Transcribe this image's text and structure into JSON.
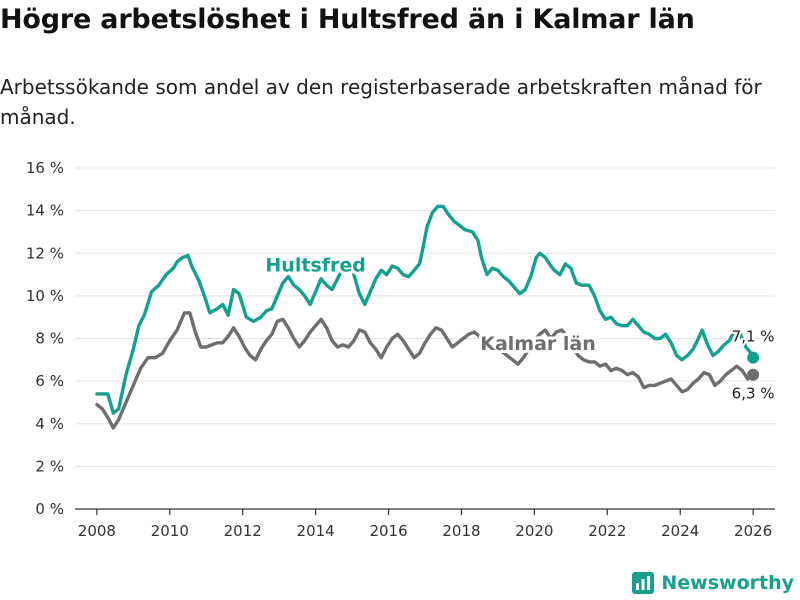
{
  "title": "Högre arbetslöshet i Hultsfred än i Kalmar län",
  "subtitle": "Arbetssökande som andel av den registerbaserade arbetskraften månad för månad.",
  "brand": "Newsworthy",
  "colors": {
    "hultsfred": "#13a08f",
    "kalmar": "#6e6e6e",
    "brand": "#17a08f"
  },
  "chart_data": {
    "type": "line",
    "title": "Högre arbetslöshet i Hultsfred än i Kalmar län",
    "xlabel": "",
    "ylabel": "",
    "xlim": [
      2007.4,
      2026.6
    ],
    "ylim": [
      0,
      16
    ],
    "xticks": [
      2008,
      2010,
      2012,
      2014,
      2016,
      2018,
      2020,
      2022,
      2024,
      2026
    ],
    "xtick_labels": [
      "2008",
      "2010",
      "2012",
      "2014",
      "2016",
      "2018",
      "2020",
      "2022",
      "2024",
      "2026"
    ],
    "yticks": [
      0,
      2,
      4,
      6,
      8,
      10,
      12,
      14,
      16
    ],
    "ytick_labels": [
      "0 %",
      "2 %",
      "4 %",
      "6 %",
      "8 %",
      "10 %",
      "12 %",
      "14 %",
      "16 %"
    ],
    "series": [
      {
        "name": "Hultsfred",
        "label": "Hultsfred",
        "end_label": "7,1 %",
        "end_value": 7.1,
        "points": [
          [
            2008.0,
            5.4
          ],
          [
            2008.3,
            5.4
          ],
          [
            2008.45,
            4.5
          ],
          [
            2008.6,
            4.7
          ],
          [
            2008.8,
            6.3
          ],
          [
            2009.0,
            7.5
          ],
          [
            2009.15,
            8.6
          ],
          [
            2009.3,
            9.1
          ],
          [
            2009.5,
            10.2
          ],
          [
            2009.7,
            10.5
          ],
          [
            2009.9,
            11.0
          ],
          [
            2010.1,
            11.3
          ],
          [
            2010.2,
            11.6
          ],
          [
            2010.35,
            11.8
          ],
          [
            2010.5,
            11.9
          ],
          [
            2010.6,
            11.4
          ],
          [
            2010.8,
            10.7
          ],
          [
            2010.95,
            10.0
          ],
          [
            2011.1,
            9.2
          ],
          [
            2011.3,
            9.4
          ],
          [
            2011.45,
            9.6
          ],
          [
            2011.6,
            9.1
          ],
          [
            2011.75,
            10.3
          ],
          [
            2011.9,
            10.1
          ],
          [
            2012.1,
            9.0
          ],
          [
            2012.3,
            8.8
          ],
          [
            2012.5,
            9.0
          ],
          [
            2012.65,
            9.3
          ],
          [
            2012.8,
            9.4
          ],
          [
            2012.95,
            10.0
          ],
          [
            2013.1,
            10.6
          ],
          [
            2013.25,
            10.9
          ],
          [
            2013.4,
            10.5
          ],
          [
            2013.55,
            10.3
          ],
          [
            2013.7,
            10.0
          ],
          [
            2013.85,
            9.6
          ],
          [
            2014.0,
            10.2
          ],
          [
            2014.15,
            10.8
          ],
          [
            2014.3,
            10.5
          ],
          [
            2014.45,
            10.3
          ],
          [
            2014.6,
            10.8
          ],
          [
            2014.75,
            11.3
          ],
          [
            2014.9,
            11.6
          ],
          [
            2015.05,
            11.0
          ],
          [
            2015.2,
            10.1
          ],
          [
            2015.35,
            9.6
          ],
          [
            2015.5,
            10.2
          ],
          [
            2015.65,
            10.8
          ],
          [
            2015.8,
            11.2
          ],
          [
            2015.95,
            11.0
          ],
          [
            2016.1,
            11.4
          ],
          [
            2016.25,
            11.3
          ],
          [
            2016.4,
            11.0
          ],
          [
            2016.55,
            10.9
          ],
          [
            2016.7,
            11.2
          ],
          [
            2016.85,
            11.5
          ],
          [
            2016.95,
            12.3
          ],
          [
            2017.05,
            13.2
          ],
          [
            2017.2,
            13.9
          ],
          [
            2017.35,
            14.2
          ],
          [
            2017.5,
            14.2
          ],
          [
            2017.65,
            13.8
          ],
          [
            2017.8,
            13.5
          ],
          [
            2017.95,
            13.3
          ],
          [
            2018.1,
            13.1
          ],
          [
            2018.3,
            13.0
          ],
          [
            2018.45,
            12.6
          ],
          [
            2018.55,
            11.8
          ],
          [
            2018.7,
            11.0
          ],
          [
            2018.85,
            11.3
          ],
          [
            2019.0,
            11.2
          ],
          [
            2019.15,
            10.9
          ],
          [
            2019.3,
            10.7
          ],
          [
            2019.45,
            10.4
          ],
          [
            2019.6,
            10.1
          ],
          [
            2019.75,
            10.3
          ],
          [
            2019.9,
            10.9
          ],
          [
            2020.05,
            11.8
          ],
          [
            2020.15,
            12.0
          ],
          [
            2020.3,
            11.8
          ],
          [
            2020.45,
            11.4
          ],
          [
            2020.55,
            11.2
          ],
          [
            2020.7,
            11.0
          ],
          [
            2020.85,
            11.5
          ],
          [
            2021.0,
            11.3
          ],
          [
            2021.15,
            10.6
          ],
          [
            2021.3,
            10.5
          ],
          [
            2021.5,
            10.5
          ],
          [
            2021.65,
            10.0
          ],
          [
            2021.8,
            9.3
          ],
          [
            2021.95,
            8.9
          ],
          [
            2022.1,
            9.0
          ],
          [
            2022.25,
            8.7
          ],
          [
            2022.4,
            8.6
          ],
          [
            2022.55,
            8.6
          ],
          [
            2022.7,
            8.9
          ],
          [
            2022.85,
            8.6
          ],
          [
            2023.0,
            8.3
          ],
          [
            2023.15,
            8.2
          ],
          [
            2023.3,
            8.0
          ],
          [
            2023.45,
            8.0
          ],
          [
            2023.6,
            8.2
          ],
          [
            2023.75,
            7.8
          ],
          [
            2023.9,
            7.2
          ],
          [
            2024.05,
            7.0
          ],
          [
            2024.2,
            7.2
          ],
          [
            2024.35,
            7.5
          ],
          [
            2024.5,
            8.0
          ],
          [
            2024.6,
            8.4
          ],
          [
            2024.75,
            7.7
          ],
          [
            2024.9,
            7.2
          ],
          [
            2025.05,
            7.4
          ],
          [
            2025.2,
            7.7
          ],
          [
            2025.35,
            7.9
          ],
          [
            2025.5,
            8.4
          ],
          [
            2025.65,
            8.2
          ],
          [
            2025.8,
            7.6
          ],
          [
            2025.95,
            7.3
          ],
          [
            2026.0,
            7.1
          ]
        ]
      },
      {
        "name": "Kalmar län",
        "label": "Kalmar län",
        "end_label": "6,3 %",
        "end_value": 6.3,
        "points": [
          [
            2008.0,
            4.9
          ],
          [
            2008.15,
            4.7
          ],
          [
            2008.3,
            4.3
          ],
          [
            2008.45,
            3.8
          ],
          [
            2008.6,
            4.2
          ],
          [
            2008.8,
            5.0
          ],
          [
            2009.0,
            5.8
          ],
          [
            2009.2,
            6.6
          ],
          [
            2009.4,
            7.1
          ],
          [
            2009.6,
            7.1
          ],
          [
            2009.8,
            7.3
          ],
          [
            2010.0,
            7.9
          ],
          [
            2010.2,
            8.4
          ],
          [
            2010.4,
            9.2
          ],
          [
            2010.55,
            9.2
          ],
          [
            2010.7,
            8.3
          ],
          [
            2010.85,
            7.6
          ],
          [
            2011.0,
            7.6
          ],
          [
            2011.15,
            7.7
          ],
          [
            2011.3,
            7.8
          ],
          [
            2011.45,
            7.8
          ],
          [
            2011.6,
            8.1
          ],
          [
            2011.75,
            8.5
          ],
          [
            2011.9,
            8.1
          ],
          [
            2012.05,
            7.6
          ],
          [
            2012.2,
            7.2
          ],
          [
            2012.35,
            7.0
          ],
          [
            2012.5,
            7.5
          ],
          [
            2012.65,
            7.9
          ],
          [
            2012.8,
            8.2
          ],
          [
            2012.95,
            8.8
          ],
          [
            2013.1,
            8.9
          ],
          [
            2013.25,
            8.5
          ],
          [
            2013.4,
            8.0
          ],
          [
            2013.55,
            7.6
          ],
          [
            2013.7,
            7.9
          ],
          [
            2013.85,
            8.3
          ],
          [
            2014.0,
            8.6
          ],
          [
            2014.15,
            8.9
          ],
          [
            2014.3,
            8.5
          ],
          [
            2014.45,
            7.9
          ],
          [
            2014.6,
            7.6
          ],
          [
            2014.75,
            7.7
          ],
          [
            2014.9,
            7.6
          ],
          [
            2015.05,
            7.9
          ],
          [
            2015.2,
            8.4
          ],
          [
            2015.35,
            8.3
          ],
          [
            2015.5,
            7.8
          ],
          [
            2015.65,
            7.5
          ],
          [
            2015.8,
            7.1
          ],
          [
            2015.95,
            7.6
          ],
          [
            2016.1,
            8.0
          ],
          [
            2016.25,
            8.2
          ],
          [
            2016.4,
            7.9
          ],
          [
            2016.55,
            7.5
          ],
          [
            2016.7,
            7.1
          ],
          [
            2016.85,
            7.3
          ],
          [
            2017.0,
            7.8
          ],
          [
            2017.15,
            8.2
          ],
          [
            2017.3,
            8.5
          ],
          [
            2017.45,
            8.4
          ],
          [
            2017.6,
            8.0
          ],
          [
            2017.75,
            7.6
          ],
          [
            2017.9,
            7.8
          ],
          [
            2018.05,
            8.0
          ],
          [
            2018.2,
            8.2
          ],
          [
            2018.35,
            8.3
          ],
          [
            2018.5,
            8.1
          ],
          [
            2018.65,
            7.7
          ],
          [
            2018.8,
            7.5
          ],
          [
            2018.95,
            7.6
          ],
          [
            2019.1,
            7.4
          ],
          [
            2019.25,
            7.2
          ],
          [
            2019.4,
            7.0
          ],
          [
            2019.55,
            6.8
          ],
          [
            2019.7,
            7.1
          ],
          [
            2019.85,
            7.5
          ],
          [
            2020.0,
            7.9
          ],
          [
            2020.15,
            8.2
          ],
          [
            2020.3,
            8.4
          ],
          [
            2020.45,
            8.0
          ],
          [
            2020.6,
            8.3
          ],
          [
            2020.75,
            8.4
          ],
          [
            2020.9,
            8.1
          ],
          [
            2021.05,
            7.6
          ],
          [
            2021.2,
            7.2
          ],
          [
            2021.35,
            7.0
          ],
          [
            2021.5,
            6.9
          ],
          [
            2021.65,
            6.9
          ],
          [
            2021.8,
            6.7
          ],
          [
            2021.95,
            6.8
          ],
          [
            2022.1,
            6.5
          ],
          [
            2022.25,
            6.6
          ],
          [
            2022.4,
            6.5
          ],
          [
            2022.55,
            6.3
          ],
          [
            2022.7,
            6.4
          ],
          [
            2022.85,
            6.2
          ],
          [
            2023.0,
            5.7
          ],
          [
            2023.15,
            5.8
          ],
          [
            2023.3,
            5.8
          ],
          [
            2023.45,
            5.9
          ],
          [
            2023.6,
            6.0
          ],
          [
            2023.75,
            6.1
          ],
          [
            2023.9,
            5.8
          ],
          [
            2024.05,
            5.5
          ],
          [
            2024.2,
            5.6
          ],
          [
            2024.35,
            5.9
          ],
          [
            2024.5,
            6.1
          ],
          [
            2024.65,
            6.4
          ],
          [
            2024.8,
            6.3
          ],
          [
            2024.95,
            5.8
          ],
          [
            2025.1,
            6.0
          ],
          [
            2025.25,
            6.3
          ],
          [
            2025.4,
            6.5
          ],
          [
            2025.55,
            6.7
          ],
          [
            2025.7,
            6.5
          ],
          [
            2025.85,
            6.1
          ],
          [
            2026.0,
            6.3
          ]
        ]
      }
    ]
  }
}
